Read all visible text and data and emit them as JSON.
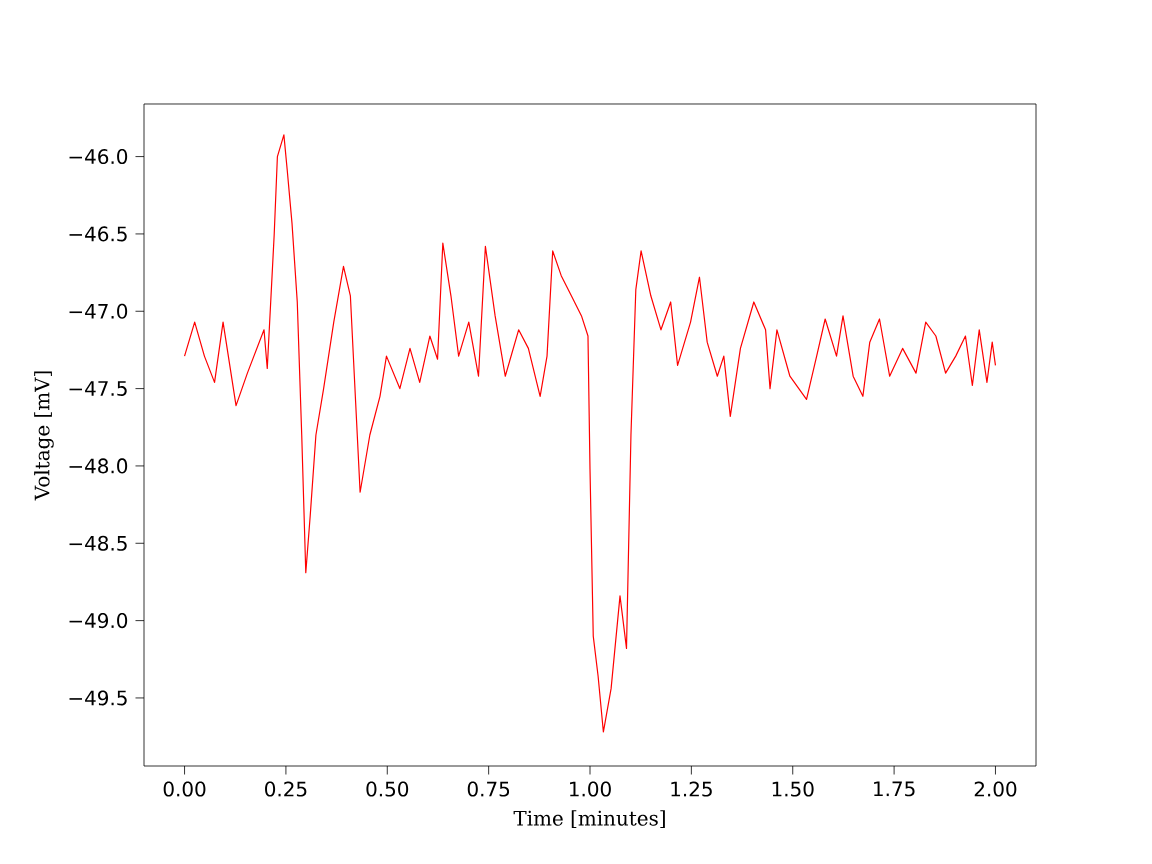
{
  "chart_data": {
    "type": "line",
    "xlabel": "Time [minutes]",
    "ylabel": "Voltage [mV]",
    "xlim": [
      -0.1,
      2.1
    ],
    "ylim": [
      -49.94,
      -45.66
    ],
    "xticks": [
      {
        "value": 0,
        "label": "0.00"
      },
      {
        "value": 0.25,
        "label": "0.25"
      },
      {
        "value": 0.5,
        "label": "0.50"
      },
      {
        "value": 0.75,
        "label": "0.75"
      },
      {
        "value": 1,
        "label": "1.00"
      },
      {
        "value": 1.25,
        "label": "1.25"
      },
      {
        "value": 1.5,
        "label": "1.50"
      },
      {
        "value": 1.75,
        "label": "1.75"
      },
      {
        "value": 2,
        "label": "2.00"
      }
    ],
    "yticks": [
      {
        "value": -46,
        "label": "−46.0"
      },
      {
        "value": -46.5,
        "label": "−46.5"
      },
      {
        "value": -47,
        "label": "−47.0"
      },
      {
        "value": -47.5,
        "label": "−47.5"
      },
      {
        "value": -48,
        "label": "−48.0"
      },
      {
        "value": -48.5,
        "label": "−48.5"
      },
      {
        "value": -49,
        "label": "−49.0"
      },
      {
        "value": -49.5,
        "label": "−49.5"
      }
    ],
    "grid": false,
    "marker": "none",
    "line_style": "solid",
    "x": [
      0,
      0.025,
      0.049,
      0.074,
      0.095,
      0.127,
      0.155,
      0.196,
      0.204,
      0.221,
      0.229,
      0.245,
      0.253,
      0.265,
      0.278,
      0.289,
      0.299,
      0.31,
      0.324,
      0.343,
      0.368,
      0.392,
      0.409,
      0.422,
      0.433,
      0.457,
      0.482,
      0.498,
      0.531,
      0.556,
      0.58,
      0.605,
      0.624,
      0.637,
      0.657,
      0.676,
      0.701,
      0.725,
      0.742,
      0.766,
      0.791,
      0.824,
      0.848,
      0.877,
      0.894,
      0.908,
      0.929,
      0.954,
      0.979,
      0.995,
      1.0,
      1.008,
      1.02,
      1.033,
      1.052,
      1.074,
      1.09,
      1.101,
      1.113,
      1.126,
      1.15,
      1.175,
      1.199,
      1.216,
      1.248,
      1.27,
      1.289,
      1.314,
      1.33,
      1.346,
      1.371,
      1.404,
      1.433,
      1.444,
      1.461,
      1.493,
      1.534,
      1.559,
      1.58,
      1.608,
      1.624,
      1.649,
      1.673,
      1.69,
      1.714,
      1.739,
      1.771,
      1.804,
      1.828,
      1.853,
      1.877,
      1.902,
      1.926,
      1.943,
      1.96,
      1.979,
      1.992,
      2.0
    ],
    "series": [
      {
        "color": "#ff0000",
        "values": [
          -47.29,
          -47.07,
          -47.29,
          -47.46,
          -47.07,
          -47.61,
          -47.4,
          -47.12,
          -47.37,
          -46.51,
          -46.0,
          -45.86,
          -46.08,
          -46.43,
          -46.94,
          -47.8,
          -48.69,
          -48.32,
          -47.8,
          -47.5,
          -47.07,
          -46.71,
          -46.9,
          -47.59,
          -48.17,
          -47.8,
          -47.55,
          -47.29,
          -47.5,
          -47.24,
          -47.46,
          -47.16,
          -47.31,
          -46.56,
          -46.9,
          -47.29,
          -47.07,
          -47.42,
          -46.58,
          -47.03,
          -47.42,
          -47.12,
          -47.24,
          -47.55,
          -47.29,
          -46.61,
          -46.77,
          -46.9,
          -47.03,
          -47.16,
          -48.02,
          -49.1,
          -49.36,
          -49.72,
          -49.44,
          -48.84,
          -49.18,
          -47.8,
          -46.86,
          -46.61,
          -46.9,
          -47.12,
          -46.94,
          -47.35,
          -47.07,
          -46.78,
          -47.2,
          -47.42,
          -47.29,
          -47.68,
          -47.24,
          -46.94,
          -47.12,
          -47.5,
          -47.12,
          -47.42,
          -47.57,
          -47.29,
          -47.05,
          -47.29,
          -47.03,
          -47.42,
          -47.55,
          -47.2,
          -47.05,
          -47.42,
          -47.24,
          -47.4,
          -47.07,
          -47.16,
          -47.4,
          -47.29,
          -47.16,
          -47.48,
          -47.12,
          -47.46,
          -47.2,
          -47.35
        ]
      }
    ]
  }
}
